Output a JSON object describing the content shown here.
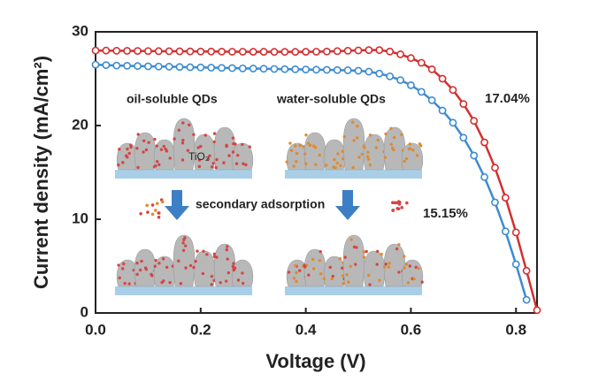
{
  "chart_data": {
    "type": "line",
    "xlabel": "Voltage (V)",
    "ylabel": "Current density (mA/cm²)",
    "xlim": [
      0,
      0.84
    ],
    "ylim": [
      0,
      30
    ],
    "xticks": [
      {
        "value": 0,
        "label": "0.0"
      },
      0.2,
      0.4,
      0.6,
      0.8
    ],
    "yticks": [
      0,
      10,
      20,
      30
    ],
    "series": [
      {
        "name": "17.04%",
        "color": "#d32f2f",
        "x": [
          0,
          0.02,
          0.04,
          0.06,
          0.08,
          0.1,
          0.12,
          0.14,
          0.16,
          0.18,
          0.2,
          0.22,
          0.24,
          0.26,
          0.28,
          0.3,
          0.32,
          0.34,
          0.36,
          0.38,
          0.4,
          0.42,
          0.44,
          0.46,
          0.48,
          0.5,
          0.52,
          0.54,
          0.56,
          0.58,
          0.6,
          0.62,
          0.64,
          0.66,
          0.68,
          0.7,
          0.72,
          0.74,
          0.76,
          0.78,
          0.8,
          0.82,
          0.84
        ],
        "values": [
          28.0,
          28.0,
          27.98,
          27.97,
          27.96,
          27.95,
          27.94,
          27.93,
          27.92,
          27.91,
          27.9,
          27.9,
          27.89,
          27.88,
          27.88,
          27.87,
          27.87,
          27.86,
          27.86,
          27.86,
          27.87,
          27.88,
          27.9,
          27.94,
          27.98,
          28.02,
          28.05,
          28.05,
          27.9,
          27.6,
          27.2,
          26.7,
          26.0,
          25.0,
          23.8,
          22.3,
          20.5,
          18.2,
          15.5,
          12.3,
          8.6,
          4.5,
          0.3
        ]
      },
      {
        "name": "15.15%",
        "color": "#3d8bd0",
        "x": [
          0,
          0.02,
          0.04,
          0.06,
          0.08,
          0.1,
          0.12,
          0.14,
          0.16,
          0.18,
          0.2,
          0.22,
          0.24,
          0.26,
          0.28,
          0.3,
          0.32,
          0.34,
          0.36,
          0.38,
          0.4,
          0.42,
          0.44,
          0.46,
          0.48,
          0.5,
          0.52,
          0.54,
          0.56,
          0.58,
          0.6,
          0.62,
          0.64,
          0.66,
          0.68,
          0.7,
          0.72,
          0.74,
          0.76,
          0.78,
          0.8,
          0.82
        ],
        "values": [
          26.5,
          26.45,
          26.4,
          26.38,
          26.35,
          26.32,
          26.3,
          26.28,
          26.25,
          26.22,
          26.2,
          26.18,
          26.15,
          26.13,
          26.1,
          26.08,
          26.06,
          26.04,
          26.02,
          26.0,
          25.98,
          25.96,
          25.94,
          25.92,
          25.9,
          25.85,
          25.75,
          25.55,
          25.25,
          24.85,
          24.3,
          23.6,
          22.7,
          21.6,
          20.3,
          18.7,
          16.8,
          14.5,
          11.8,
          8.7,
          5.2,
          1.4
        ]
      }
    ],
    "annotations": [
      "oil-soluble QDs",
      "water-soluble QDs",
      "TiO₂",
      "secondary adsorption"
    ]
  }
}
